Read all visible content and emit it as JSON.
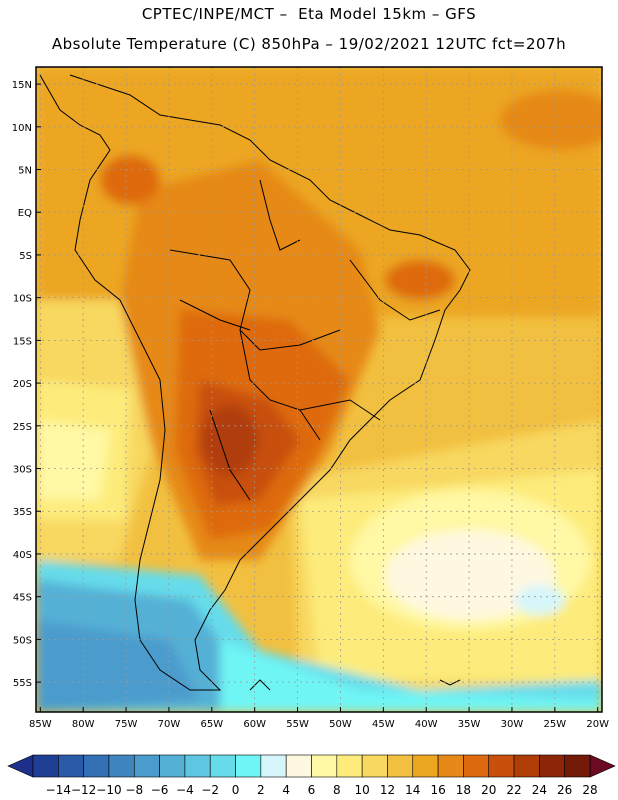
{
  "header": {
    "line1": "CPTEC/INPE/MCT –  Eta Model 15km – GFS",
    "line2": "Absolute Temperature (C) 850hPa – 19/02/2021 12UTC fct=207h"
  },
  "axes": {
    "lat_labels": [
      "15N",
      "10N",
      "5N",
      "EQ",
      "5S",
      "10S",
      "15S",
      "20S",
      "25S",
      "30S",
      "35S",
      "40S",
      "45S",
      "50S",
      "55S"
    ],
    "lat_values": [
      15,
      10,
      5,
      0,
      -5,
      -10,
      -15,
      -20,
      -25,
      -30,
      -35,
      -40,
      -45,
      -50,
      -55
    ],
    "lon_labels": [
      "85W",
      "80W",
      "75W",
      "70W",
      "65W",
      "60W",
      "55W",
      "50W",
      "45W",
      "40W",
      "35W",
      "30W",
      "25W",
      "20W"
    ],
    "lon_values": [
      -85,
      -80,
      -75,
      -70,
      -65,
      -60,
      -55,
      -50,
      -45,
      -40,
      -35,
      -30,
      -25,
      -20
    ],
    "lon_range": [
      -85.5,
      -19.5
    ],
    "lat_range": [
      -58.5,
      17
    ]
  },
  "colorbar": {
    "labels": [
      "-14",
      "-12",
      "-10",
      "-8",
      "-6",
      "-4",
      "-2",
      "0",
      "2",
      "4",
      "6",
      "8",
      "10",
      "12",
      "14",
      "16",
      "18",
      "20",
      "22",
      "24",
      "26",
      "28"
    ],
    "colors": [
      "#1f3f94",
      "#2a5aa8",
      "#3470b4",
      "#3f86c0",
      "#4b9ccc",
      "#55b0d6",
      "#5ec6e0",
      "#66dcea",
      "#6ff5f5",
      "#d6f6fb",
      "#fff8e0",
      "#fff8a4",
      "#fdec7c",
      "#f8d860",
      "#f2c040",
      "#eca620",
      "#e68918",
      "#de6a10",
      "#c8500c",
      "#b03c08",
      "#8c2608",
      "#741a08"
    ],
    "under_color": "#1e2f8c",
    "over_color": "#6c0a22"
  }
}
